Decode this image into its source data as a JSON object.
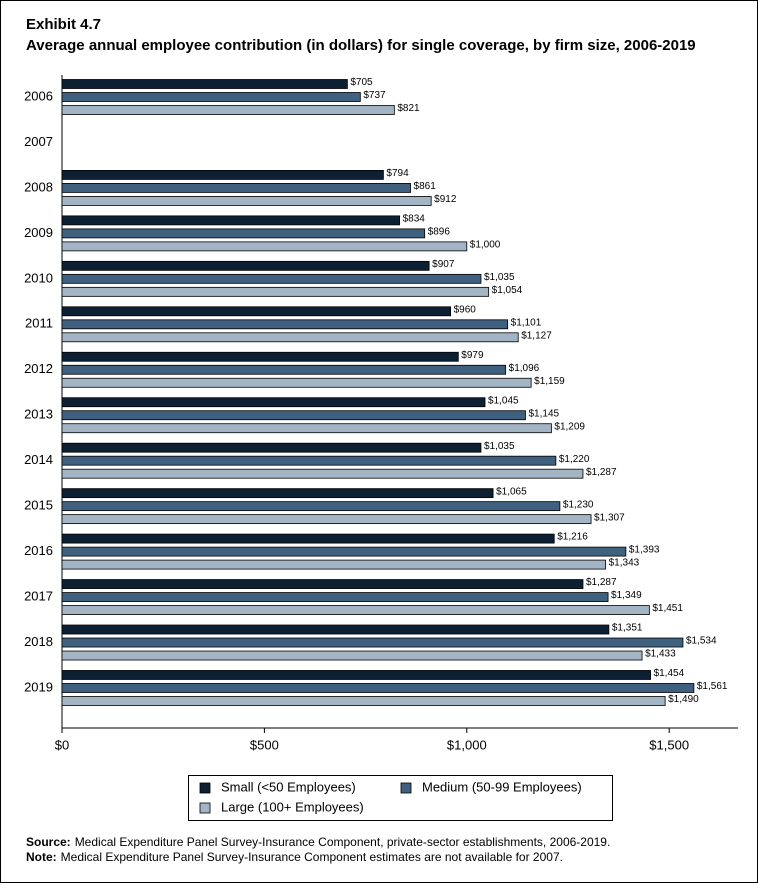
{
  "chart_data": {
    "type": "hbar",
    "title": "Exhibit 4.7",
    "subtitle": "Average annual employee contribution (in dollars) for single coverage, by firm size, 2006-2019",
    "categories": [
      "2006",
      "2007",
      "2008",
      "2009",
      "2010",
      "2011",
      "2012",
      "2013",
      "2014",
      "2015",
      "2016",
      "2017",
      "2018",
      "2019"
    ],
    "series": [
      {
        "name": "Small (<50 Employees)",
        "color": "#0d1f33",
        "values": [
          705,
          null,
          794,
          834,
          907,
          960,
          979,
          1045,
          1035,
          1065,
          1216,
          1287,
          1351,
          1454
        ],
        "value_labels": [
          "$705",
          null,
          "$794",
          "$834",
          "$907",
          "$960",
          "$979",
          "$1,045",
          "$1,035",
          "$1,065",
          "$1,216",
          "$1,287",
          "$1,351",
          "$1,454"
        ]
      },
      {
        "name": "Medium (50-99 Employees)",
        "color": "#3f607f",
        "values": [
          737,
          null,
          861,
          896,
          1035,
          1101,
          1096,
          1145,
          1220,
          1230,
          1393,
          1349,
          1534,
          1561
        ],
        "value_labels": [
          "$737",
          null,
          "$861",
          "$896",
          "$1,035",
          "$1,101",
          "$1,096",
          "$1,145",
          "$1,220",
          "$1,230",
          "$1,393",
          "$1,349",
          "$1,534",
          "$1,561"
        ]
      },
      {
        "name": "Large (100+ Employees)",
        "color": "#a3b4c4",
        "values": [
          821,
          null,
          912,
          1000,
          1054,
          1127,
          1159,
          1209,
          1287,
          1307,
          1343,
          1451,
          1433,
          1490
        ],
        "value_labels": [
          "$821",
          null,
          "$912",
          "$1,000",
          "$1,054",
          "$1,127",
          "$1,159",
          "$1,209",
          "$1,287",
          "$1,307",
          "$1,343",
          "$1,451",
          "$1,433",
          "$1,490"
        ]
      }
    ],
    "xlim": [
      0,
      1670
    ],
    "xticks": [
      {
        "value": 0,
        "label": "$0"
      },
      {
        "value": 500,
        "label": "$500"
      },
      {
        "value": 1000,
        "label": "$1,000"
      },
      {
        "value": 1500,
        "label": "$1,500"
      }
    ],
    "legend": "bottom",
    "notes": [
      {
        "label": "Source:",
        "text": "Medical Expenditure Panel Survey-Insurance Component, private-sector establishments, 2006-2019."
      },
      {
        "label": "Note:",
        "text": "Medical Expenditure Panel Survey-Insurance Component estimates are not available for 2007."
      }
    ]
  }
}
